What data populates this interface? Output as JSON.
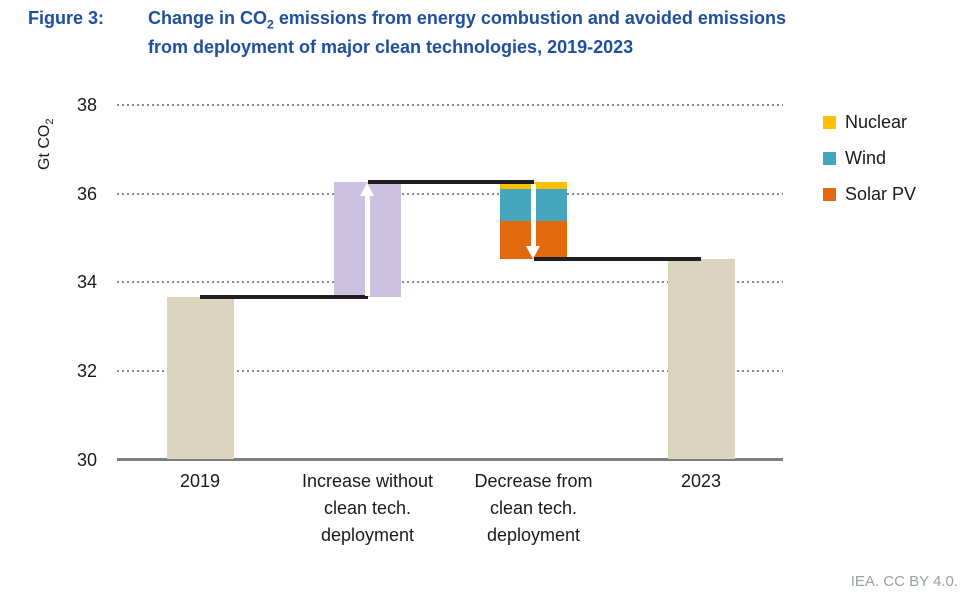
{
  "title": {
    "label": "Figure 3:",
    "line1_pre": "Change in CO",
    "line1_sub": "2",
    "line1_post": " emissions from energy combustion and avoided emissions",
    "line2": "from deployment of major clean technologies, 2019-2023"
  },
  "footer": {
    "attribution": "IEA. CC BY 4.0."
  },
  "colors": {
    "title": "#1E4FA0",
    "grid": "#8A8A8A",
    "axis": "#7F7F7F",
    "connector": "#1F1F1F",
    "arrow": "#FFFFFF",
    "text": "#1A1A1A",
    "footer": "#98A0A4",
    "total_bar": "#DBD5C0",
    "increase_bar": "#CCC2E0",
    "nuclear": "#FFC000",
    "wind": "#46A6BE",
    "solar_pv": "#E2690C"
  },
  "chart_data": {
    "type": "bar",
    "subtype": "waterfall",
    "title": "Change in CO2 emissions from energy combustion and avoided emissions from deployment of major clean technologies, 2019-2023",
    "ylabel_pre": "Gt CO",
    "ylabel_sub": "2",
    "unit": "Gt CO2",
    "ylim": [
      30,
      38
    ],
    "yticks": [
      38,
      36,
      34,
      32,
      30
    ],
    "grid": "dotted horizontal gridlines at 32, 34, 36, 38; solid axis at 30",
    "legend_position": "upper right, outside plot",
    "categories": [
      "2019",
      "Increase without\nclean tech.\ndeployment",
      "Decrease from\nclean tech.\ndeployment",
      "2023"
    ],
    "bars": [
      {
        "label": "2019",
        "kind": "total",
        "from": 30,
        "to": 33.67,
        "color": "#DBD5C0"
      },
      {
        "label": "Increase without clean tech. deployment",
        "kind": "increase",
        "from": 33.67,
        "to": 36.26,
        "color": "#CCC2E0",
        "arrow": "up"
      },
      {
        "label": "Decrease from clean tech. deployment",
        "kind": "decrease-stacked",
        "from": 36.26,
        "to": 34.52,
        "arrow": "down",
        "segments": [
          {
            "label": "Nuclear",
            "value": 0.16,
            "color": "#FFC000"
          },
          {
            "label": "Wind",
            "value": 0.71,
            "color": "#46A6BE"
          },
          {
            "label": "Solar PV",
            "value": 0.87,
            "color": "#E2690C"
          }
        ]
      },
      {
        "label": "2023",
        "kind": "total",
        "from": 30,
        "to": 34.52,
        "color": "#DBD5C0"
      }
    ],
    "connectors": [
      {
        "level": 33.67,
        "from_bar": 0,
        "to_bar": 1
      },
      {
        "level": 36.26,
        "from_bar": 1,
        "to_bar": 2
      },
      {
        "level": 34.52,
        "from_bar": 2,
        "to_bar": 3
      }
    ],
    "legend": [
      {
        "label": "Nuclear",
        "color": "#FFC000"
      },
      {
        "label": "Wind",
        "color": "#46A6BE"
      },
      {
        "label": "Solar PV",
        "color": "#E2690C"
      }
    ]
  }
}
